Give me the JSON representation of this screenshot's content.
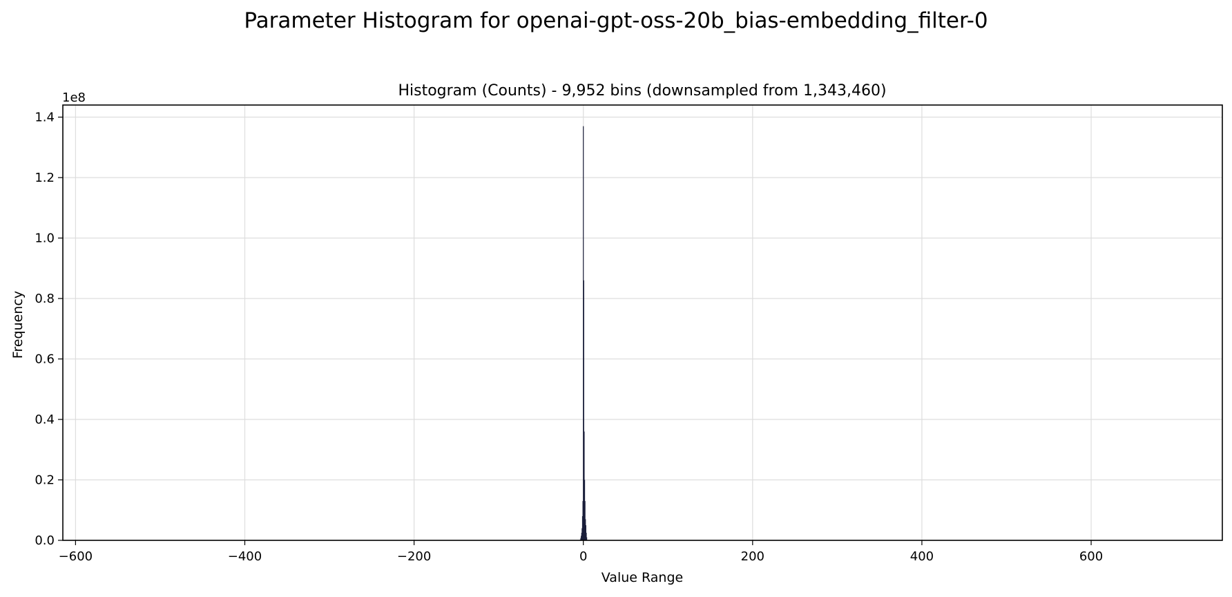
{
  "figure": {
    "suptitle": "Parameter Histogram for openai-gpt-oss-20b_bias-embedding_filter-0"
  },
  "chart_data": {
    "type": "bar",
    "title": "Histogram (Counts) - 9,952 bins (downsampled from 1,343,460)",
    "xlabel": "Value Range",
    "ylabel": "Frequency",
    "y_offset_text": "1e8",
    "xlim": [
      -615,
      755
    ],
    "ylim": [
      0,
      144000000.0
    ],
    "x_ticks": [
      {
        "value": -600,
        "label": "−600"
      },
      {
        "value": -400,
        "label": "−400"
      },
      {
        "value": -200,
        "label": "−200"
      },
      {
        "value": 0,
        "label": "0"
      },
      {
        "value": 200,
        "label": "200"
      },
      {
        "value": 400,
        "label": "400"
      },
      {
        "value": 600,
        "label": "600"
      }
    ],
    "y_ticks": [
      {
        "value": 0,
        "label": "0.0"
      },
      {
        "value": 20000000,
        "label": "0.2"
      },
      {
        "value": 40000000,
        "label": "0.4"
      },
      {
        "value": 60000000,
        "label": "0.6"
      },
      {
        "value": 80000000,
        "label": "0.8"
      },
      {
        "value": 100000000,
        "label": "1.0"
      },
      {
        "value": 120000000,
        "label": "1.2"
      },
      {
        "value": 140000000,
        "label": "1.4"
      }
    ],
    "grid": true,
    "bar_color": "#1a1f3a",
    "x": [
      -3.5,
      -3.0,
      -2.5,
      -2.0,
      -1.5,
      -1.0,
      -0.5,
      0.0,
      0.5,
      1.0,
      1.5,
      2.0,
      2.5,
      3.0,
      3.5,
      4.0
    ],
    "values": [
      300000,
      800000,
      1500000,
      2500000,
      4000000,
      8000000,
      13000000,
      137000000,
      86000000,
      36000000,
      20000000,
      13000000,
      7000000,
      5000000,
      2500000,
      1000000
    ]
  }
}
